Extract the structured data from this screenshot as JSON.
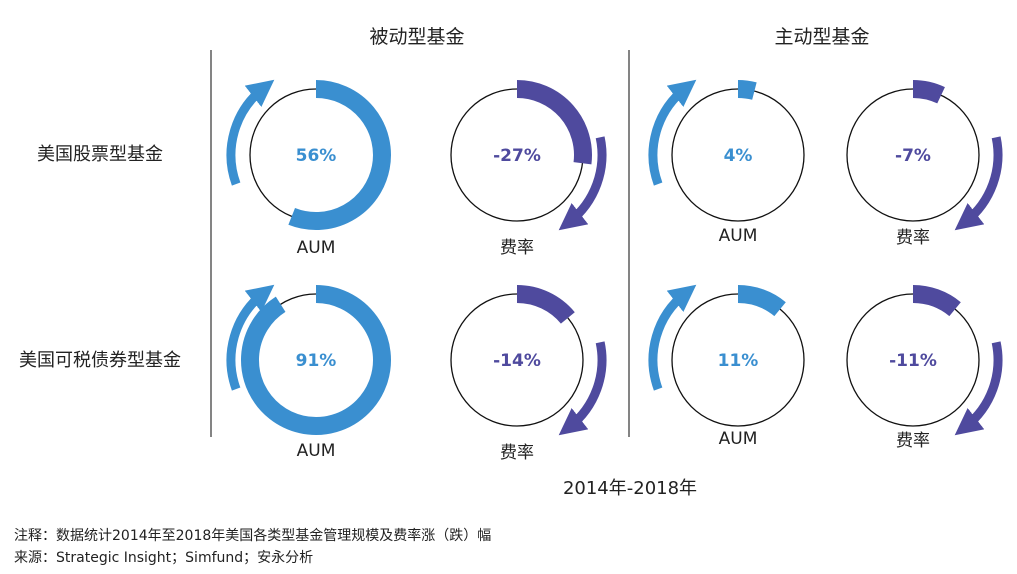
{
  "chart_data": {
    "type": "pie",
    "title": "",
    "period": "2014年-2018年",
    "columns": [
      "被动型基金",
      "主动型基金"
    ],
    "rows": [
      "美国股票型基金",
      "美国可税债券型基金"
    ],
    "metrics": {
      "aum": "AUM",
      "fee": "费率"
    },
    "cells": [
      {
        "row": "美国股票型基金",
        "column": "被动型基金",
        "metric": "AUM",
        "value": 56,
        "label": "56%",
        "direction": "up"
      },
      {
        "row": "美国股票型基金",
        "column": "被动型基金",
        "metric": "费率",
        "value": -27,
        "label": "-27%",
        "direction": "down"
      },
      {
        "row": "美国股票型基金",
        "column": "主动型基金",
        "metric": "AUM",
        "value": 4,
        "label": "4%",
        "direction": "up"
      },
      {
        "row": "美国股票型基金",
        "column": "主动型基金",
        "metric": "费率",
        "value": -7,
        "label": "-7%",
        "direction": "down"
      },
      {
        "row": "美国可税债券型基金",
        "column": "被动型基金",
        "metric": "AUM",
        "value": 91,
        "label": "91%",
        "direction": "up"
      },
      {
        "row": "美国可税债券型基金",
        "column": "被动型基金",
        "metric": "费率",
        "value": -14,
        "label": "-14%",
        "direction": "down"
      },
      {
        "row": "美国可税债券型基金",
        "column": "主动型基金",
        "metric": "AUM",
        "value": 11,
        "label": "11%",
        "direction": "up"
      },
      {
        "row": "美国可税债券型基金",
        "column": "主动型基金",
        "metric": "费率",
        "value": -11,
        "label": "-11%",
        "direction": "down"
      }
    ],
    "colors": {
      "aum": "#3a8fd0",
      "fee": "#4f4a9e"
    }
  },
  "notes": {
    "note": "注释：数据统计2014年至2018年美国各类型基金管理规模及费率涨（跌）幅",
    "source": "来源：Strategic Insight；Simfund；安永分析"
  }
}
